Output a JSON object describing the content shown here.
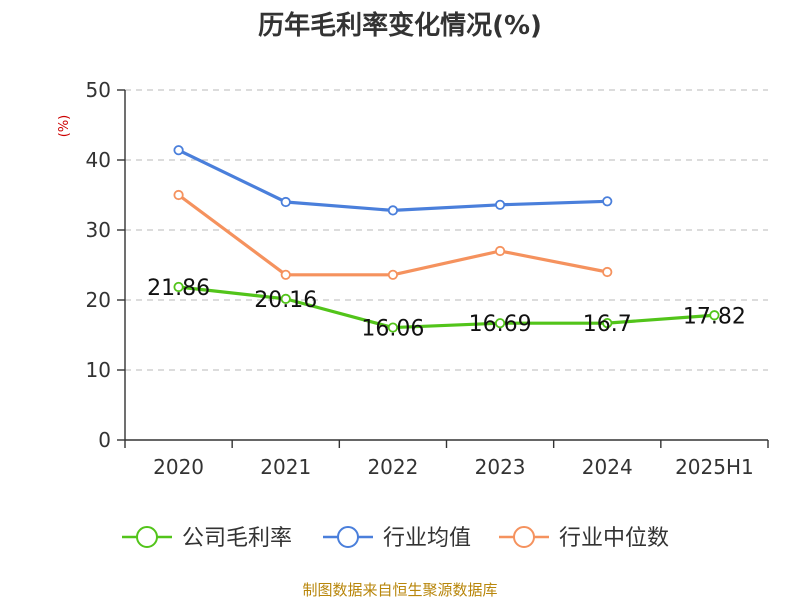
{
  "chart_data": {
    "type": "line",
    "title": "历年毛利率变化情况(%)",
    "ylabel": "(%)",
    "categories": [
      "2020",
      "2021",
      "2022",
      "2023",
      "2024",
      "2025H1"
    ],
    "yticks": [
      "0",
      "10",
      "20",
      "30",
      "40",
      "50"
    ],
    "ylim": [
      0,
      50
    ],
    "grid": true,
    "legend_position": "bottom",
    "series": [
      {
        "name": "公司毛利率",
        "color": "#52c41a",
        "values": [
          21.86,
          20.16,
          16.06,
          16.69,
          16.7,
          17.82
        ],
        "labels": [
          "21.86",
          "20.16",
          "16.06",
          "16.69",
          "16.7",
          "17.82"
        ]
      },
      {
        "name": "行业均值",
        "color": "#4a7fdb",
        "values": [
          41.4,
          34.0,
          32.8,
          33.6,
          34.1,
          null
        ]
      },
      {
        "name": "行业中位数",
        "color": "#f5925e",
        "values": [
          35.0,
          23.6,
          23.6,
          27.0,
          24.0,
          null
        ]
      }
    ]
  },
  "source": "制图数据来自恒生聚源数据库"
}
